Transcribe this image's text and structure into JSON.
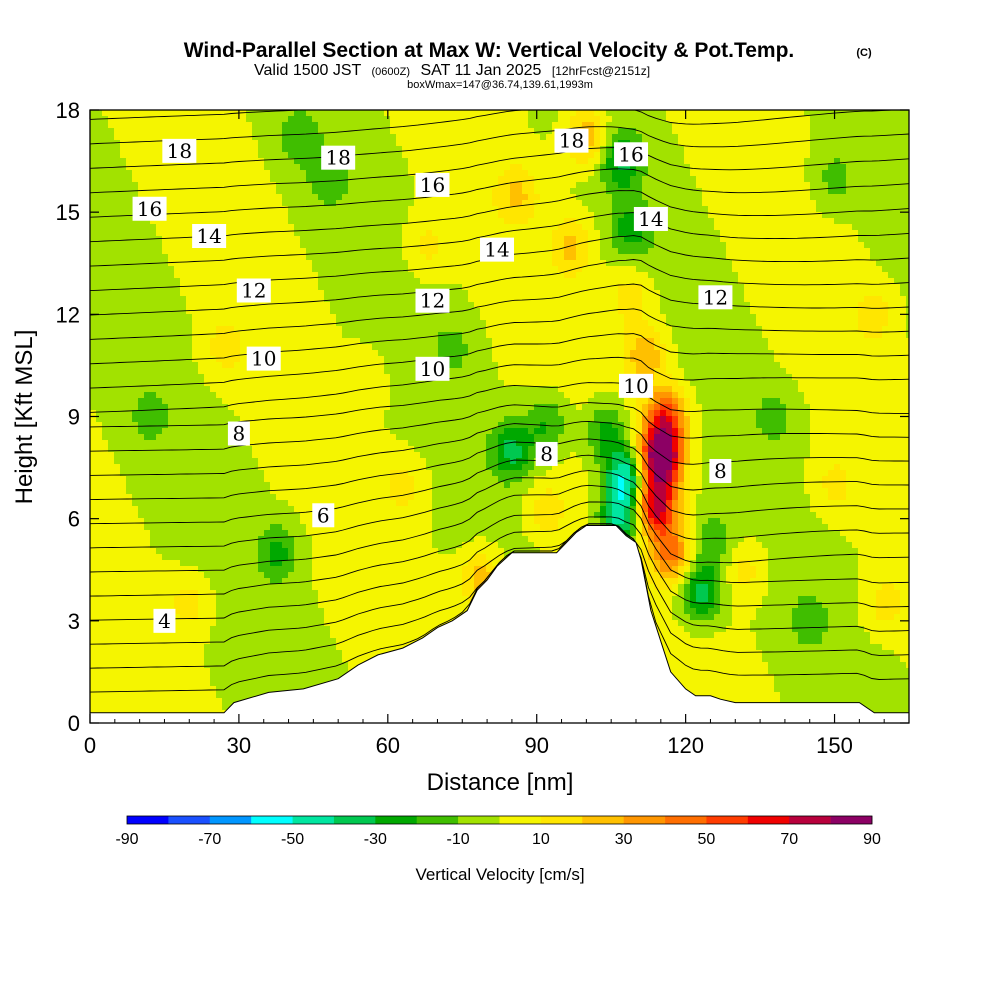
{
  "header": {
    "title": "Wind-Parallel Section at Max W: Vertical Velocity & Pot.Temp.",
    "copyright": "(C)",
    "valid_prefix": "Valid 1500 JST",
    "valid_zulu": "(0600Z)",
    "valid_date": "SAT 11 Jan 2025",
    "forecast": "[12hrFcst@2151z]",
    "box_info": "boxWmax=147@36.74,139.61,1993m"
  },
  "chart_data": {
    "type": "heatmap",
    "xlabel": "Distance [nm]",
    "ylabel": "Height [Kft MSL]",
    "xlim": [
      0,
      165
    ],
    "ylim": [
      0,
      18
    ],
    "x_ticks": [
      0,
      30,
      60,
      90,
      120,
      150
    ],
    "y_ticks": [
      0,
      3,
      6,
      9,
      12,
      15,
      18
    ],
    "x_tick_labels": [
      "0",
      "30",
      "60",
      "90",
      "120",
      "150"
    ],
    "y_tick_labels": [
      "0",
      "3",
      "6",
      "9",
      "12",
      "15",
      "18"
    ],
    "colorbar": {
      "label": "Vertical Velocity [cm/s]",
      "bounds": [
        -90,
        90
      ],
      "step": 10,
      "tick_values": [
        -90,
        -70,
        -50,
        -30,
        -10,
        10,
        30,
        50,
        70,
        90
      ],
      "tick_labels": [
        "-90",
        "-70",
        "-50",
        "-30",
        "-10",
        "10",
        "30",
        "50",
        "70",
        "90"
      ],
      "colors": [
        "#0000ff",
        "#1a50ff",
        "#0096ff",
        "#00ffff",
        "#00e6a0",
        "#00c850",
        "#00a800",
        "#40be00",
        "#a2e200",
        "#f5f500",
        "#ffe600",
        "#ffc000",
        "#ff9600",
        "#ff6e00",
        "#ff3c00",
        "#f00000",
        "#b8003c",
        "#8c0064"
      ]
    },
    "velocity_features": [
      {
        "x": 115,
        "y": 7.8,
        "w": 98
      },
      {
        "x": 114,
        "y": 6.4,
        "w": 72
      },
      {
        "x": 116,
        "y": 9.0,
        "w": 55
      },
      {
        "x": 112,
        "y": 10.8,
        "w": 30
      },
      {
        "x": 109,
        "y": 12.5,
        "w": 18
      },
      {
        "x": 117,
        "y": 5.0,
        "w": 42
      },
      {
        "x": 108,
        "y": 7.2,
        "w": -55
      },
      {
        "x": 107,
        "y": 6.0,
        "w": -45
      },
      {
        "x": 104,
        "y": 8.5,
        "w": -28
      },
      {
        "x": 85,
        "y": 8.0,
        "w": -32
      },
      {
        "x": 92,
        "y": 8.8,
        "w": -22
      },
      {
        "x": 123,
        "y": 3.8,
        "w": -38
      },
      {
        "x": 125,
        "y": 5.3,
        "w": -20
      },
      {
        "x": 107,
        "y": 16.5,
        "w": -30
      },
      {
        "x": 109,
        "y": 14.5,
        "w": -22
      },
      {
        "x": 100,
        "y": 17.2,
        "w": 32
      },
      {
        "x": 97,
        "y": 14.0,
        "w": 22
      },
      {
        "x": 86,
        "y": 15.5,
        "w": 20
      },
      {
        "x": 79,
        "y": 4.2,
        "w": 28
      },
      {
        "x": 92,
        "y": 6.2,
        "w": 18
      },
      {
        "x": 132,
        "y": 4.5,
        "w": 15
      },
      {
        "x": 138,
        "y": 9.0,
        "w": -14
      },
      {
        "x": 38,
        "y": 5.0,
        "w": -22
      },
      {
        "x": 42,
        "y": 17.2,
        "w": -14
      },
      {
        "x": 48,
        "y": 16.0,
        "w": -16
      },
      {
        "x": 20,
        "y": 3.5,
        "w": 15
      },
      {
        "x": 27,
        "y": 11.0,
        "w": 14
      },
      {
        "x": 63,
        "y": 7.0,
        "w": 14
      },
      {
        "x": 68,
        "y": 14.0,
        "w": 14
      },
      {
        "x": 150,
        "y": 16.0,
        "w": -14
      },
      {
        "x": 158,
        "y": 12.0,
        "w": 14
      },
      {
        "x": 145,
        "y": 3.0,
        "w": -13
      },
      {
        "x": 12,
        "y": 9.0,
        "w": -12
      },
      {
        "x": 55,
        "y": 10.0,
        "w": 10
      },
      {
        "x": 73,
        "y": 11.0,
        "w": -12
      },
      {
        "x": 160,
        "y": 3.5,
        "w": 14
      },
      {
        "x": 150,
        "y": 7.0,
        "w": 13
      }
    ],
    "terrain": [
      [
        0,
        0.3
      ],
      [
        10,
        0.3
      ],
      [
        20,
        0.3
      ],
      [
        27,
        0.3
      ],
      [
        29,
        0.6
      ],
      [
        36,
        0.9
      ],
      [
        43,
        1.0
      ],
      [
        50,
        1.3
      ],
      [
        54,
        1.7
      ],
      [
        58,
        2.0
      ],
      [
        63,
        2.2
      ],
      [
        67,
        2.5
      ],
      [
        70,
        2.8
      ],
      [
        73,
        3.0
      ],
      [
        76,
        3.3
      ],
      [
        78,
        3.9
      ],
      [
        80,
        4.2
      ],
      [
        82,
        4.6
      ],
      [
        85,
        5.0
      ],
      [
        88,
        5.0
      ],
      [
        90,
        5.0
      ],
      [
        92,
        5.0
      ],
      [
        94,
        5.0
      ],
      [
        96,
        5.3
      ],
      [
        98,
        5.6
      ],
      [
        100,
        5.8
      ],
      [
        102,
        5.8
      ],
      [
        104,
        5.8
      ],
      [
        106,
        5.8
      ],
      [
        108,
        5.5
      ],
      [
        110,
        5.3
      ],
      [
        111,
        4.8
      ],
      [
        113,
        3.3
      ],
      [
        115,
        2.4
      ],
      [
        117,
        1.5
      ],
      [
        120,
        1.0
      ],
      [
        122,
        0.8
      ],
      [
        125,
        0.8
      ],
      [
        127,
        0.7
      ],
      [
        130,
        0.6
      ],
      [
        140,
        0.6
      ],
      [
        150,
        0.6
      ],
      [
        155,
        0.6
      ],
      [
        158,
        0.3
      ],
      [
        165,
        0.3
      ]
    ],
    "theta_contours": [
      {
        "label": "4",
        "label_pos": [
          15,
          3.0
        ]
      },
      {
        "label": "6",
        "label_pos": [
          47,
          6.1
        ]
      },
      {
        "label": "8",
        "label_pos": [
          30,
          8.5
        ]
      },
      {
        "label": "8",
        "label_pos": [
          92,
          7.9
        ]
      },
      {
        "label": "8",
        "label_pos": [
          127,
          7.4
        ]
      },
      {
        "label": "10",
        "label_pos": [
          35,
          10.7
        ]
      },
      {
        "label": "10",
        "label_pos": [
          69,
          10.4
        ]
      },
      {
        "label": "10",
        "label_pos": [
          110,
          9.9
        ]
      },
      {
        "label": "12",
        "label_pos": [
          33,
          12.7
        ]
      },
      {
        "label": "12",
        "label_pos": [
          69,
          12.4
        ]
      },
      {
        "label": "12",
        "label_pos": [
          126,
          12.5
        ]
      },
      {
        "label": "14",
        "label_pos": [
          24,
          14.3
        ]
      },
      {
        "label": "14",
        "label_pos": [
          82,
          13.9
        ]
      },
      {
        "label": "14",
        "label_pos": [
          113,
          14.8
        ]
      },
      {
        "label": "16",
        "label_pos": [
          12,
          15.1
        ]
      },
      {
        "label": "16",
        "label_pos": [
          69,
          15.8
        ]
      },
      {
        "label": "16",
        "label_pos": [
          109,
          16.7
        ]
      },
      {
        "label": "18",
        "label_pos": [
          18,
          16.8
        ]
      },
      {
        "label": "18",
        "label_pos": [
          50,
          16.6
        ]
      },
      {
        "label": "18",
        "label_pos": [
          97,
          17.1
        ]
      }
    ]
  }
}
